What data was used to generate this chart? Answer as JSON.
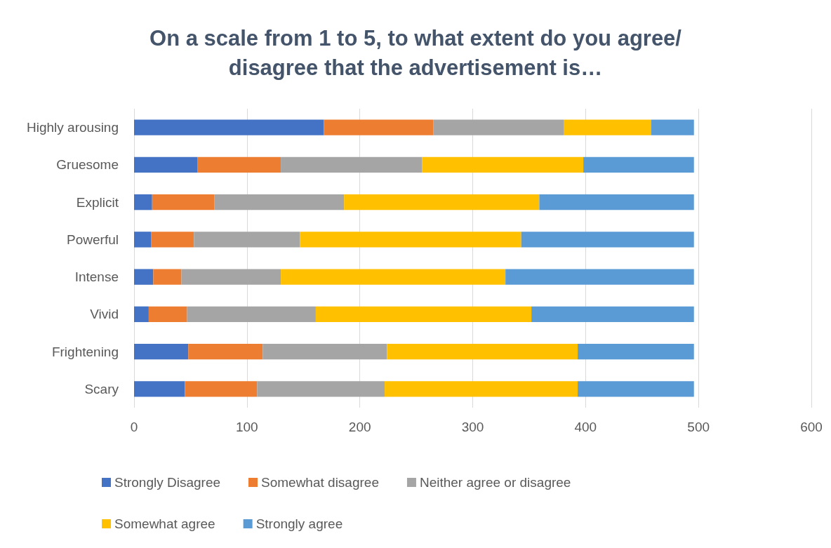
{
  "chart_data": {
    "type": "bar",
    "orientation": "horizontal",
    "stacked": true,
    "title": "On a scale from 1 to 5, to what extent do you agree/disagree that the advertisement is…",
    "categories": [
      "Highly arousing",
      "Gruesome",
      "Explicit",
      "Powerful",
      "Intense",
      "Vivid",
      "Frightening",
      "Scary"
    ],
    "series": [
      {
        "name": "Strongly Disagree",
        "color": "#4472c4",
        "values": [
          168,
          56,
          16,
          15,
          17,
          13,
          48,
          45
        ]
      },
      {
        "name": "Somewhat disagree",
        "color": "#ed7d31",
        "values": [
          97,
          74,
          55,
          38,
          25,
          34,
          66,
          64
        ]
      },
      {
        "name": "Neither agree or disagree",
        "color": "#a5a5a5",
        "values": [
          116,
          125,
          115,
          94,
          88,
          114,
          110,
          113
        ]
      },
      {
        "name": "Somewhat agree",
        "color": "#ffc000",
        "values": [
          77,
          143,
          173,
          196,
          199,
          191,
          169,
          171
        ]
      },
      {
        "name": "Strongly agree",
        "color": "#5b9bd5",
        "values": [
          38,
          98,
          137,
          153,
          167,
          144,
          103,
          103
        ]
      }
    ],
    "xlim": [
      0,
      600
    ],
    "xticks": [
      0,
      100,
      200,
      300,
      400,
      500,
      600
    ],
    "grid": "x",
    "legend": "bottom"
  }
}
